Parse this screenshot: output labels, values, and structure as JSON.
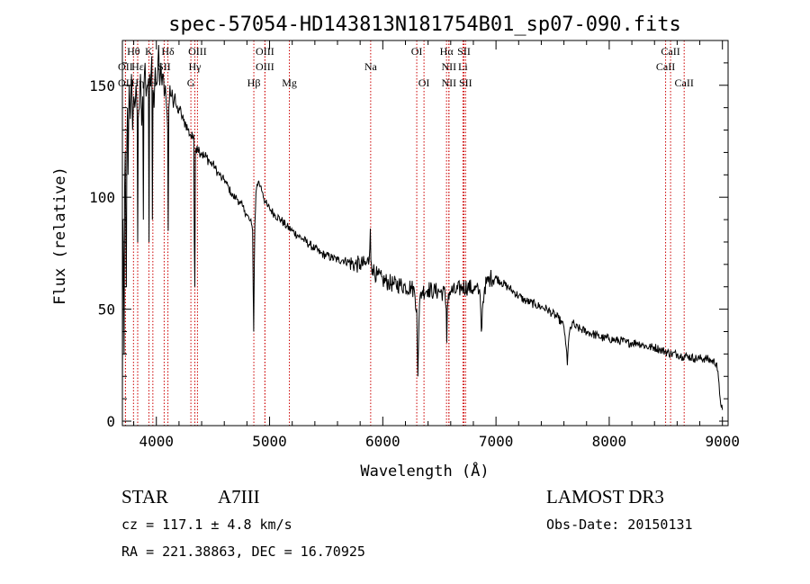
{
  "chart_data": {
    "type": "line",
    "title": "spec-57054-HD143813N181754B01_sp07-090.fits",
    "xlabel": "Wavelength (Å)",
    "ylabel": "Flux (relative)",
    "xlim": [
      3700,
      9050
    ],
    "ylim": [
      -2,
      170
    ],
    "x_ticks": [
      4000,
      5000,
      6000,
      7000,
      8000,
      9000
    ],
    "y_ticks": [
      0,
      50,
      100,
      150
    ],
    "series": [
      {
        "name": "flux",
        "x": [
          3700,
          3705,
          3710,
          3715,
          3720,
          3725,
          3730,
          3735,
          3740,
          3745,
          3750,
          3760,
          3770,
          3780,
          3790,
          3800,
          3810,
          3820,
          3830,
          3835,
          3840,
          3850,
          3860,
          3870,
          3880,
          3885,
          3890,
          3900,
          3910,
          3920,
          3930,
          3935,
          3940,
          3950,
          3960,
          3965,
          3970,
          3980,
          3990,
          4000,
          4010,
          4020,
          4030,
          4040,
          4050,
          4060,
          4070,
          4080,
          4090,
          4100,
          4105,
          4110,
          4120,
          4130,
          4140,
          4150,
          4160,
          4170,
          4180,
          4190,
          4200,
          4220,
          4240,
          4260,
          4280,
          4300,
          4320,
          4330,
          4335,
          4340,
          4345,
          4350,
          4360,
          4380,
          4400,
          4420,
          4440,
          4460,
          4480,
          4500,
          4520,
          4540,
          4560,
          4580,
          4600,
          4620,
          4640,
          4660,
          4680,
          4700,
          4720,
          4740,
          4760,
          4780,
          4800,
          4820,
          4840,
          4850,
          4855,
          4860,
          4865,
          4870,
          4880,
          4890,
          4900,
          4920,
          4940,
          4960,
          4980,
          5000,
          5050,
          5100,
          5150,
          5200,
          5250,
          5300,
          5350,
          5400,
          5450,
          5500,
          5550,
          5600,
          5650,
          5700,
          5750,
          5800,
          5850,
          5880,
          5890,
          5895,
          5900,
          5910,
          5950,
          6000,
          6050,
          6100,
          6150,
          6200,
          6250,
          6280,
          6300,
          6310,
          6320,
          6330,
          6350,
          6400,
          6450,
          6500,
          6550,
          6560,
          6565,
          6570,
          6580,
          6600,
          6650,
          6700,
          6750,
          6800,
          6850,
          6860,
          6865,
          6870,
          6880,
          6900,
          6950,
          7000,
          7050,
          7100,
          7150,
          7200,
          7250,
          7300,
          7350,
          7400,
          7450,
          7500,
          7550,
          7580,
          7600,
          7610,
          7620,
          7630,
          7640,
          7650,
          7660,
          7680,
          7700,
          7750,
          7800,
          7850,
          7900,
          7950,
          8000,
          8050,
          8100,
          8150,
          8200,
          8250,
          8300,
          8350,
          8400,
          8450,
          8500,
          8550,
          8600,
          8650,
          8700,
          8750,
          8800,
          8850,
          8900,
          8950,
          8980,
          9000
        ],
        "y": [
          10,
          90,
          70,
          30,
          105,
          120,
          85,
          60,
          125,
          140,
          110,
          150,
          135,
          155,
          130,
          145,
          140,
          150,
          138,
          80,
          135,
          140,
          155,
          132,
          145,
          90,
          148,
          160,
          145,
          150,
          153,
          80,
          155,
          150,
          163,
          90,
          148,
          140,
          158,
          150,
          152,
          168,
          150,
          160,
          150,
          155,
          145,
          150,
          140,
          130,
          85,
          140,
          150,
          145,
          148,
          140,
          145,
          142,
          140,
          138,
          140,
          137,
          134,
          133,
          130,
          128,
          126,
          128,
          80,
          60,
          120,
          122,
          123,
          121,
          120,
          118,
          118,
          117,
          115,
          115,
          113,
          111,
          110,
          108,
          108,
          106,
          104,
          102,
          100,
          100,
          99,
          97,
          96,
          94,
          92,
          90,
          88,
          85,
          60,
          40,
          70,
          88,
          102,
          106,
          107,
          105,
          102,
          98,
          96,
          95,
          92,
          90,
          87,
          85,
          83,
          81,
          79,
          77,
          75,
          74,
          73,
          72,
          72,
          71,
          70,
          70,
          70,
          72,
          86,
          72,
          70,
          68,
          65,
          63,
          62,
          61,
          61,
          60,
          60,
          58,
          50,
          20,
          45,
          56,
          58,
          59,
          58,
          58,
          57,
          50,
          35,
          50,
          57,
          58,
          58,
          60,
          60,
          59,
          58,
          56,
          50,
          40,
          50,
          60,
          64,
          64,
          62,
          60,
          58,
          56,
          54,
          53,
          52,
          51,
          50,
          48,
          46,
          44,
          42,
          38,
          33,
          25,
          35,
          40,
          42,
          44,
          42,
          41,
          40,
          39,
          38,
          37,
          37,
          36,
          36,
          35,
          35,
          35,
          34,
          33,
          33,
          32,
          31,
          30,
          30,
          29,
          29,
          28,
          28,
          28,
          27,
          26,
          10,
          5
        ]
      }
    ],
    "line_ids": [
      {
        "label": "Hθ",
        "wl": 3798,
        "row": 1
      },
      {
        "label": "OII",
        "wl": 3727,
        "row": 2
      },
      {
        "label": "OII",
        "wl": 3727,
        "row": 3
      },
      {
        "label": "Hε",
        "wl": 3835,
        "row": 2
      },
      {
        "label": "Hη",
        "wl": 3835,
        "row": 3
      },
      {
        "label": "K",
        "wl": 3934,
        "row": 1
      },
      {
        "label": "H",
        "wl": 3969,
        "row": 3
      },
      {
        "label": "SII",
        "wl": 4069,
        "row": 2
      },
      {
        "label": "Hδ",
        "wl": 4102,
        "row": 1
      },
      {
        "label": "OIII",
        "wl": 4363,
        "row": 1
      },
      {
        "label": "Hγ",
        "wl": 4340,
        "row": 2
      },
      {
        "label": "G",
        "wl": 4305,
        "row": 3
      },
      {
        "label": "OIII",
        "wl": 4959,
        "row": 1
      },
      {
        "label": "OIII",
        "wl": 4959,
        "row": 2
      },
      {
        "label": "Hβ",
        "wl": 4861,
        "row": 3
      },
      {
        "label": "Mg",
        "wl": 5175,
        "row": 3
      },
      {
        "label": "Na",
        "wl": 5893,
        "row": 2
      },
      {
        "label": "OI",
        "wl": 6300,
        "row": 1
      },
      {
        "label": "OI",
        "wl": 6364,
        "row": 3
      },
      {
        "label": "Hα",
        "wl": 6563,
        "row": 1
      },
      {
        "label": "SII",
        "wl": 6717,
        "row": 1
      },
      {
        "label": "NII",
        "wl": 6584,
        "row": 2
      },
      {
        "label": "NII",
        "wl": 6584,
        "row": 3
      },
      {
        "label": "Li",
        "wl": 6708,
        "row": 2
      },
      {
        "label": "SII",
        "wl": 6731,
        "row": 3
      },
      {
        "label": "CaII",
        "wl": 8542,
        "row": 1
      },
      {
        "label": "CaII",
        "wl": 8498,
        "row": 2
      },
      {
        "label": "CaII",
        "wl": 8662,
        "row": 3
      }
    ],
    "line_colors": {
      "data": "#000000",
      "marker": "#cc0000"
    }
  },
  "info": {
    "object_class": "STAR",
    "subclass": "A7III",
    "survey": "LAMOST  DR3",
    "cz": "cz = 117.1 ± 4.8 km/s",
    "obs_date": "Obs-Date: 20150131",
    "coords": "RA = 221.38863, DEC =  16.70925"
  }
}
